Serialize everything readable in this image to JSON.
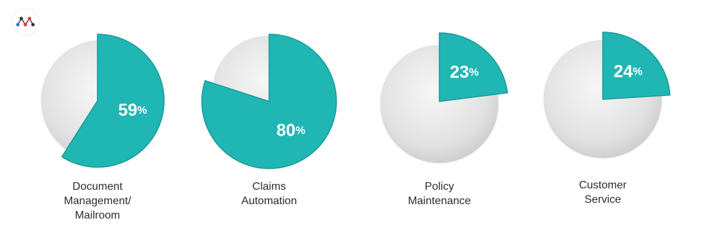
{
  "chart_data": [
    {
      "type": "pie",
      "title": "Document Management/ Mailroom",
      "values": [
        59
      ],
      "value_labels": [
        "59%"
      ],
      "color": "#20b6b3"
    },
    {
      "type": "pie",
      "title": "Claims Automation",
      "values": [
        80
      ],
      "value_labels": [
        "80%"
      ],
      "color": "#20b6b3"
    },
    {
      "type": "pie",
      "title": "Policy Maintenance",
      "values": [
        23
      ],
      "value_labels": [
        "23%"
      ],
      "color": "#20b6b3"
    },
    {
      "type": "pie",
      "title": "Customer Service",
      "values": [
        24
      ],
      "value_labels": [
        "24%"
      ],
      "color": "#20b6b3"
    }
  ]
}
